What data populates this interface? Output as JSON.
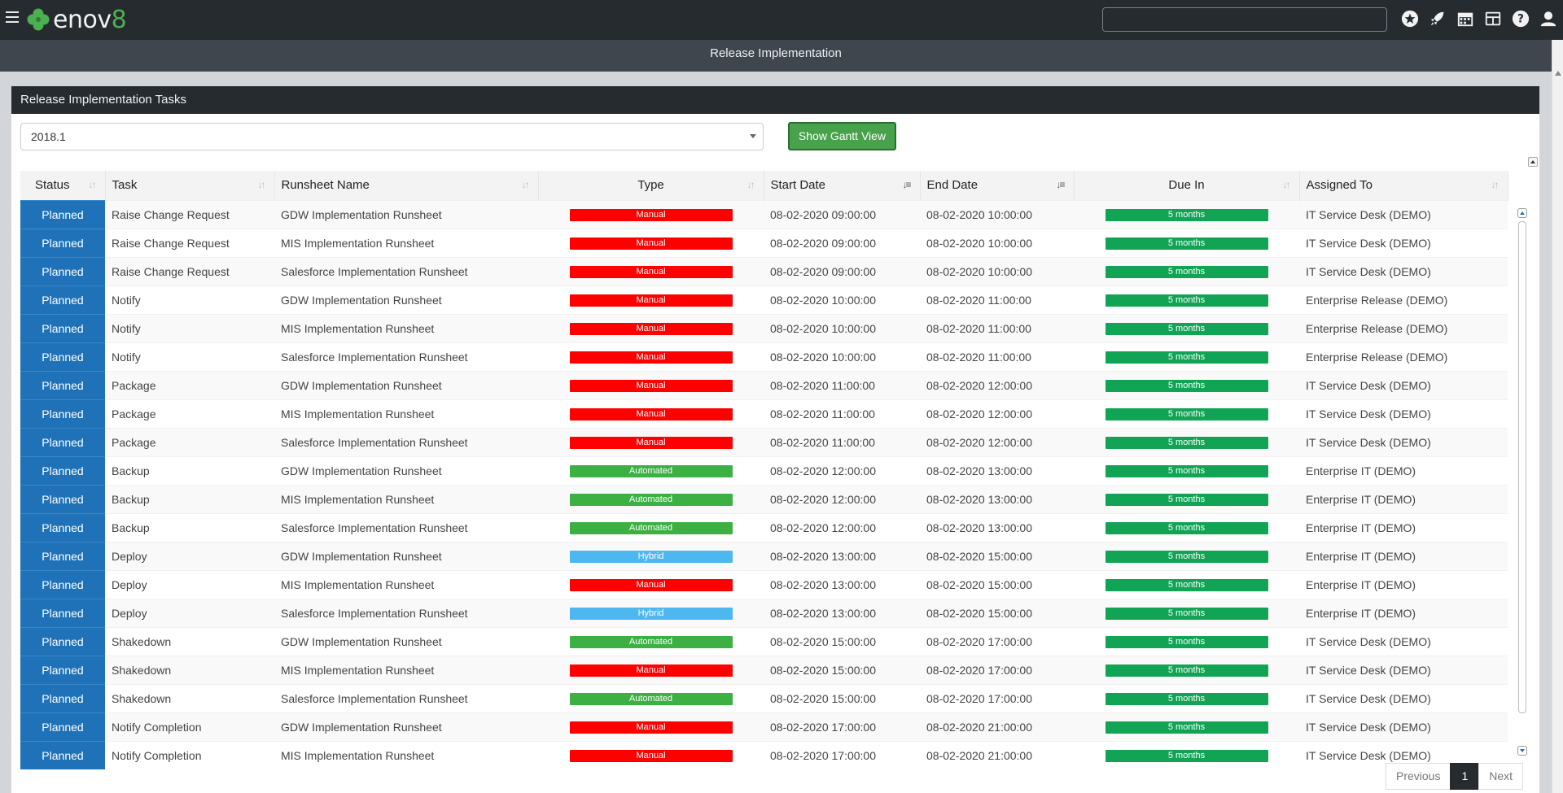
{
  "app": {
    "logo_text": "enov",
    "logo_digit": "8",
    "page_title": "Release Implementation",
    "search_value": ""
  },
  "nav_icons": [
    "star-icon",
    "rocket-icon",
    "calendar-icon",
    "dashboard-icon",
    "help-icon",
    "user-icon"
  ],
  "panel": {
    "title": "Release Implementation Tasks",
    "release_select": "2018.1",
    "gantt_button": "Show Gantt View"
  },
  "table": {
    "headers": {
      "status": "Status",
      "task": "Task",
      "runsheet": "Runsheet Name",
      "type": "Type",
      "start": "Start Date",
      "end": "End Date",
      "due": "Due In",
      "assigned": "Assigned To"
    },
    "rows": [
      {
        "status": "Planned",
        "task": "Raise Change Request",
        "runsheet": "GDW Implementation Runsheet",
        "type": "Manual",
        "start": "08-02-2020 09:00:00",
        "end": "08-02-2020 10:00:00",
        "due": "5 months",
        "assigned": "IT Service Desk (DEMO)"
      },
      {
        "status": "Planned",
        "task": "Raise Change Request",
        "runsheet": "MIS Implementation Runsheet",
        "type": "Manual",
        "start": "08-02-2020 09:00:00",
        "end": "08-02-2020 10:00:00",
        "due": "5 months",
        "assigned": "IT Service Desk (DEMO)"
      },
      {
        "status": "Planned",
        "task": "Raise Change Request",
        "runsheet": "Salesforce Implementation Runsheet",
        "type": "Manual",
        "start": "08-02-2020 09:00:00",
        "end": "08-02-2020 10:00:00",
        "due": "5 months",
        "assigned": "IT Service Desk (DEMO)"
      },
      {
        "status": "Planned",
        "task": "Notify",
        "runsheet": "GDW Implementation Runsheet",
        "type": "Manual",
        "start": "08-02-2020 10:00:00",
        "end": "08-02-2020 11:00:00",
        "due": "5 months",
        "assigned": "Enterprise Release (DEMO)"
      },
      {
        "status": "Planned",
        "task": "Notify",
        "runsheet": "MIS Implementation Runsheet",
        "type": "Manual",
        "start": "08-02-2020 10:00:00",
        "end": "08-02-2020 11:00:00",
        "due": "5 months",
        "assigned": "Enterprise Release (DEMO)"
      },
      {
        "status": "Planned",
        "task": "Notify",
        "runsheet": "Salesforce Implementation Runsheet",
        "type": "Manual",
        "start": "08-02-2020 10:00:00",
        "end": "08-02-2020 11:00:00",
        "due": "5 months",
        "assigned": "Enterprise Release (DEMO)"
      },
      {
        "status": "Planned",
        "task": "Package",
        "runsheet": "GDW Implementation Runsheet",
        "type": "Manual",
        "start": "08-02-2020 11:00:00",
        "end": "08-02-2020 12:00:00",
        "due": "5 months",
        "assigned": "IT Service Desk (DEMO)"
      },
      {
        "status": "Planned",
        "task": "Package",
        "runsheet": "MIS Implementation Runsheet",
        "type": "Manual",
        "start": "08-02-2020 11:00:00",
        "end": "08-02-2020 12:00:00",
        "due": "5 months",
        "assigned": "IT Service Desk (DEMO)"
      },
      {
        "status": "Planned",
        "task": "Package",
        "runsheet": "Salesforce Implementation Runsheet",
        "type": "Manual",
        "start": "08-02-2020 11:00:00",
        "end": "08-02-2020 12:00:00",
        "due": "5 months",
        "assigned": "IT Service Desk (DEMO)"
      },
      {
        "status": "Planned",
        "task": "Backup",
        "runsheet": "GDW Implementation Runsheet",
        "type": "Automated",
        "start": "08-02-2020 12:00:00",
        "end": "08-02-2020 13:00:00",
        "due": "5 months",
        "assigned": "Enterprise IT (DEMO)"
      },
      {
        "status": "Planned",
        "task": "Backup",
        "runsheet": "MIS Implementation Runsheet",
        "type": "Automated",
        "start": "08-02-2020 12:00:00",
        "end": "08-02-2020 13:00:00",
        "due": "5 months",
        "assigned": "Enterprise IT (DEMO)"
      },
      {
        "status": "Planned",
        "task": "Backup",
        "runsheet": "Salesforce Implementation Runsheet",
        "type": "Automated",
        "start": "08-02-2020 12:00:00",
        "end": "08-02-2020 13:00:00",
        "due": "5 months",
        "assigned": "Enterprise IT (DEMO)"
      },
      {
        "status": "Planned",
        "task": "Deploy",
        "runsheet": "GDW Implementation Runsheet",
        "type": "Hybrid",
        "start": "08-02-2020 13:00:00",
        "end": "08-02-2020 15:00:00",
        "due": "5 months",
        "assigned": "Enterprise IT (DEMO)"
      },
      {
        "status": "Planned",
        "task": "Deploy",
        "runsheet": "MIS Implementation Runsheet",
        "type": "Manual",
        "start": "08-02-2020 13:00:00",
        "end": "08-02-2020 15:00:00",
        "due": "5 months",
        "assigned": "Enterprise IT (DEMO)"
      },
      {
        "status": "Planned",
        "task": "Deploy",
        "runsheet": "Salesforce Implementation Runsheet",
        "type": "Hybrid",
        "start": "08-02-2020 13:00:00",
        "end": "08-02-2020 15:00:00",
        "due": "5 months",
        "assigned": "Enterprise IT (DEMO)"
      },
      {
        "status": "Planned",
        "task": "Shakedown",
        "runsheet": "GDW Implementation Runsheet",
        "type": "Automated",
        "start": "08-02-2020 15:00:00",
        "end": "08-02-2020 17:00:00",
        "due": "5 months",
        "assigned": "IT Service Desk (DEMO)"
      },
      {
        "status": "Planned",
        "task": "Shakedown",
        "runsheet": "MIS Implementation Runsheet",
        "type": "Manual",
        "start": "08-02-2020 15:00:00",
        "end": "08-02-2020 17:00:00",
        "due": "5 months",
        "assigned": "IT Service Desk (DEMO)"
      },
      {
        "status": "Planned",
        "task": "Shakedown",
        "runsheet": "Salesforce Implementation Runsheet",
        "type": "Automated",
        "start": "08-02-2020 15:00:00",
        "end": "08-02-2020 17:00:00",
        "due": "5 months",
        "assigned": "IT Service Desk (DEMO)"
      },
      {
        "status": "Planned",
        "task": "Notify Completion",
        "runsheet": "GDW Implementation Runsheet",
        "type": "Manual",
        "start": "08-02-2020 17:00:00",
        "end": "08-02-2020 21:00:00",
        "due": "5 months",
        "assigned": "IT Service Desk (DEMO)"
      },
      {
        "status": "Planned",
        "task": "Notify Completion",
        "runsheet": "MIS Implementation Runsheet",
        "type": "Manual",
        "start": "08-02-2020 17:00:00",
        "end": "08-02-2020 21:00:00",
        "due": "5 months",
        "assigned": "IT Service Desk (DEMO)"
      }
    ]
  },
  "type_colors": {
    "Manual": "#ff0000",
    "Automated": "#3cb043",
    "Hybrid": "#4db8f0"
  },
  "due_color": "#12a455",
  "pagination": {
    "previous": "Previous",
    "current": "1",
    "next": "Next"
  }
}
